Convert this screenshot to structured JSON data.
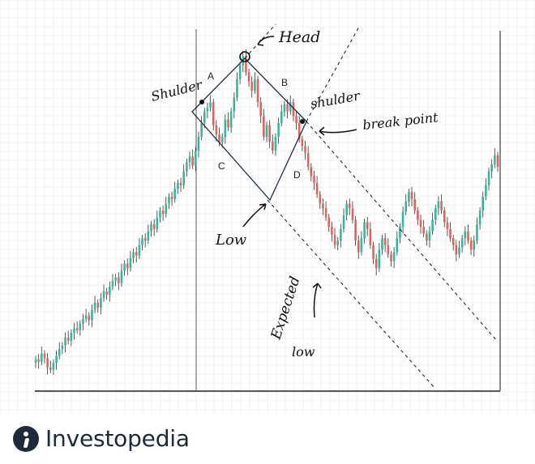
{
  "chart_data": {
    "type": "candlestick",
    "pattern": "head and shoulders",
    "grid": true,
    "colors": {
      "up": "#33b5a0",
      "down": "#e0625a",
      "wick": "#333333",
      "ink": "#111111",
      "grid": "#e6e6e6"
    },
    "close_series": [
      47,
      45,
      52,
      48,
      40,
      38,
      44,
      50,
      56,
      59,
      66,
      63,
      70,
      74,
      72,
      78,
      82,
      85,
      81,
      90,
      96,
      92,
      100,
      106,
      103,
      110,
      115,
      118,
      113,
      124,
      130,
      126,
      135,
      140,
      137,
      146,
      152,
      150,
      158,
      164,
      160,
      170,
      176,
      173,
      182,
      188,
      186,
      195,
      200,
      198,
      210,
      218,
      223,
      215,
      228,
      240,
      252,
      262,
      265,
      270,
      250,
      242,
      235,
      240,
      255,
      248,
      262,
      274,
      290,
      302,
      310,
      296,
      288,
      280,
      290,
      270,
      258,
      240,
      250,
      236,
      228,
      240,
      252,
      262,
      268,
      262,
      270,
      258,
      252,
      238,
      232,
      226,
      214,
      206,
      200,
      190,
      182,
      178,
      170,
      162,
      155,
      146,
      150,
      160,
      172,
      182,
      178,
      168,
      150,
      140,
      152,
      166,
      160,
      146,
      134,
      126,
      142,
      152,
      146,
      138,
      132,
      140,
      152,
      162,
      175,
      184,
      192,
      186,
      176,
      168,
      162,
      156,
      150,
      158,
      168,
      178,
      184,
      176,
      166,
      160,
      152,
      146,
      138,
      144,
      152,
      158,
      150,
      142,
      150,
      164,
      176,
      188,
      198,
      210,
      216,
      224,
      214
    ]
  },
  "annotations": {
    "head": "Head",
    "shoulder_left": "Shulder",
    "shoulder_right": "shulder",
    "break_point": "break point",
    "low": "Low",
    "expected_low_1": "Expected",
    "expected_low_2": "low",
    "label_a": "A",
    "label_b": "B",
    "label_c": "C",
    "label_d": "D"
  },
  "brand": {
    "name": "Investopedia"
  }
}
